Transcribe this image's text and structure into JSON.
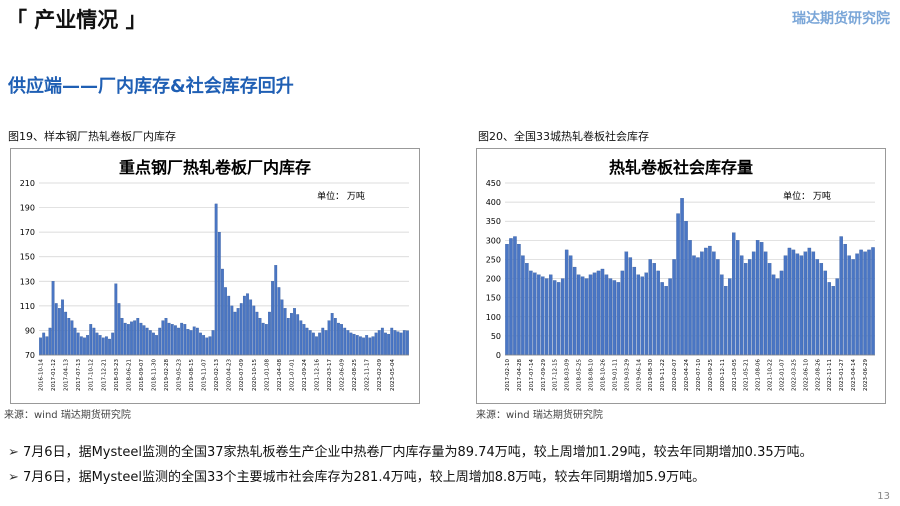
{
  "header": {
    "title": "「 产业情况 」",
    "logo": "瑞达期货研究院"
  },
  "subtitle": "供应端——厂内库存&社会库存回升",
  "captions": [
    "图19、样本钢厂热轧卷板厂内库存",
    "图20、全国33城热轧卷板社会库存"
  ],
  "sources": [
    "来源：wind  瑞达期货研究院",
    "来源：wind  瑞达期货研究院"
  ],
  "bullets": [
    "7月6日，据Mysteel监测的全国37家热轧板卷生产企业中热卷厂内库存量为89.74万吨，较上周增加1.29吨，较去年同期增加0.35万吨。",
    "7月6日，据Mysteel监测的全国33个主要城市社会库存为281.4万吨，较上周增加8.8万吨，较去年同期增加5.9万吨。"
  ],
  "page_number": "13",
  "chart_data": [
    {
      "type": "bar",
      "title": "重点钢厂热轧卷板厂内库存",
      "annotation": "单位： 万吨",
      "color": "#4a76c4",
      "ylim": [
        70,
        210
      ],
      "yticks": [
        70,
        90,
        110,
        130,
        150,
        170,
        190,
        210
      ],
      "grid": true,
      "categories": [
        "2016-10-14",
        null,
        null,
        null,
        "2017-01-12",
        null,
        null,
        null,
        "2017-04-13",
        null,
        null,
        null,
        "2017-07-13",
        null,
        null,
        null,
        "2017-10-12",
        null,
        null,
        null,
        "2017-12-21",
        null,
        null,
        null,
        "2018-03-23",
        null,
        null,
        null,
        "2018-06-21",
        null,
        null,
        null,
        "2018-09-07",
        null,
        null,
        null,
        "2018-11-30",
        null,
        null,
        null,
        "2019-02-28",
        null,
        null,
        null,
        "2019-05-23",
        null,
        null,
        null,
        "2019-08-15",
        null,
        null,
        null,
        "2019-11-07",
        null,
        null,
        null,
        "2020-02-13",
        null,
        null,
        null,
        "2020-04-23",
        null,
        null,
        null,
        "2020-07-09",
        null,
        null,
        null,
        "2020-10-15",
        null,
        null,
        null,
        "2021-01-08",
        null,
        null,
        null,
        "2021-04-08",
        null,
        null,
        null,
        "2021-07-01",
        null,
        null,
        null,
        "2021-09-24",
        null,
        null,
        null,
        "2021-12-16",
        null,
        null,
        null,
        "2022-03-17",
        null,
        null,
        null,
        "2022-06-09",
        null,
        null,
        null,
        "2022-08-25",
        null,
        null,
        null,
        "2022-11-17",
        null,
        null,
        null,
        "2023-02-09",
        null,
        null,
        null,
        "2023-05-04",
        null,
        null,
        null,
        null,
        null
      ],
      "values": [
        84,
        88,
        85,
        92,
        130,
        112,
        108,
        115,
        105,
        100,
        98,
        92,
        88,
        85,
        84,
        86,
        95,
        92,
        88,
        86,
        84,
        85,
        83,
        88,
        128,
        112,
        100,
        96,
        95,
        97,
        98,
        100,
        96,
        94,
        92,
        90,
        88,
        86,
        92,
        98,
        100,
        96,
        95,
        94,
        92,
        96,
        95,
        91,
        90,
        93,
        92,
        88,
        86,
        84,
        85,
        90,
        193,
        170,
        140,
        125,
        118,
        110,
        105,
        108,
        112,
        118,
        120,
        115,
        110,
        105,
        100,
        96,
        95,
        105,
        130,
        143,
        125,
        115,
        108,
        100,
        104,
        108,
        103,
        98,
        95,
        92,
        90,
        88,
        85,
        88,
        92,
        90,
        98,
        104,
        100,
        96,
        95,
        92,
        90,
        88,
        87,
        86,
        85,
        84,
        86,
        84,
        85,
        88,
        90,
        92,
        88,
        87,
        92,
        90,
        89,
        88,
        90,
        89.74
      ]
    },
    {
      "type": "bar",
      "title": "热轧卷板社会库存量",
      "annotation": "单位： 万吨",
      "color": "#4a76c4",
      "ylim": [
        0,
        450
      ],
      "yticks": [
        0,
        50,
        100,
        150,
        200,
        250,
        300,
        350,
        400,
        450
      ],
      "grid": true,
      "categories": [
        "2017-02-10",
        null,
        null,
        "2017-04-28",
        null,
        null,
        "2017-07-14",
        null,
        null,
        "2017-09-29",
        null,
        null,
        "2017-12-15",
        null,
        null,
        "2018-03-09",
        null,
        null,
        "2018-05-25",
        null,
        null,
        "2018-08-10",
        null,
        null,
        "2018-10-26",
        null,
        null,
        "2019-01-11",
        null,
        null,
        "2019-03-29",
        null,
        null,
        "2019-06-14",
        null,
        null,
        "2019-08-30",
        null,
        null,
        "2019-11-22",
        null,
        null,
        "2020-02-07",
        null,
        null,
        "2020-04-24",
        null,
        null,
        "2020-07-10",
        null,
        null,
        "2020-09-25",
        null,
        null,
        "2020-12-11",
        null,
        null,
        "2021-03-05",
        null,
        null,
        "2021-05-21",
        null,
        null,
        "2021-08-06",
        null,
        null,
        "2021-10-22",
        null,
        null,
        "2022-01-07",
        null,
        null,
        "2022-03-25",
        null,
        null,
        "2022-06-10",
        null,
        null,
        "2022-08-26",
        null,
        null,
        "2022-11-11",
        null,
        null,
        "2023-01-27",
        null,
        null,
        "2023-04-14",
        null,
        null,
        "2023-06-29",
        null,
        null
      ],
      "values": [
        290,
        305,
        310,
        290,
        260,
        240,
        220,
        215,
        210,
        205,
        200,
        210,
        195,
        190,
        200,
        275,
        260,
        230,
        210,
        205,
        200,
        210,
        215,
        220,
        225,
        210,
        200,
        195,
        190,
        220,
        270,
        255,
        230,
        210,
        205,
        215,
        250,
        240,
        220,
        190,
        180,
        200,
        250,
        370,
        410,
        350,
        300,
        260,
        255,
        270,
        280,
        285,
        270,
        250,
        210,
        180,
        200,
        320,
        300,
        260,
        240,
        250,
        270,
        300,
        295,
        270,
        240,
        210,
        200,
        220,
        260,
        280,
        275,
        265,
        260,
        270,
        280,
        270,
        250,
        240,
        220,
        190,
        180,
        200,
        310,
        290,
        260,
        250,
        265,
        275,
        270,
        275,
        281.4
      ]
    }
  ]
}
